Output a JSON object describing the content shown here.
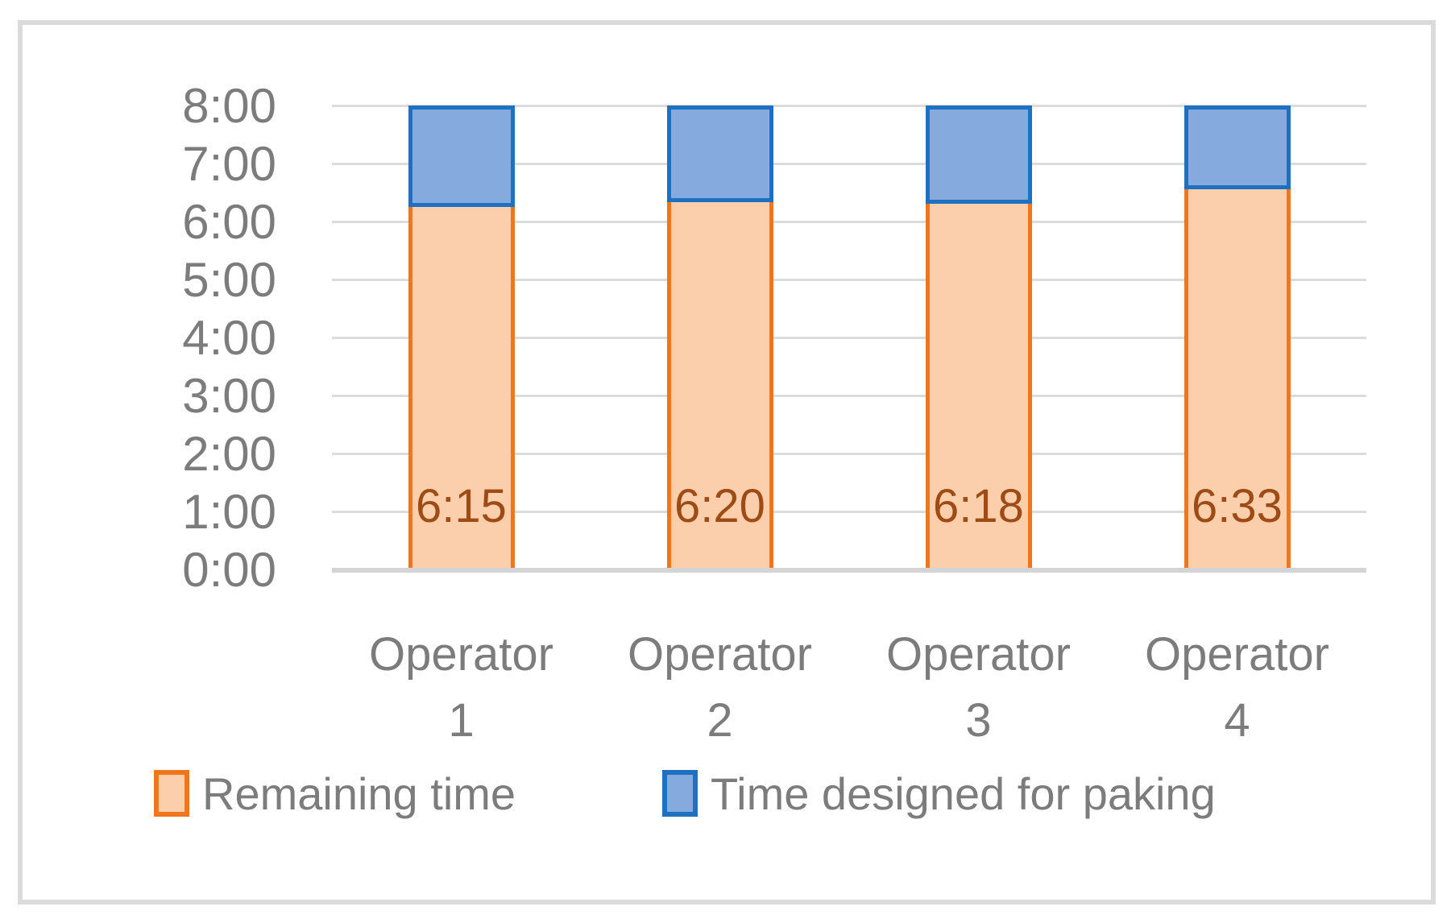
{
  "chart_data": {
    "type": "bar",
    "stacked": true,
    "orientation": "vertical",
    "title": "",
    "xlabel": "",
    "ylabel": "",
    "categories": [
      "Operator 1",
      "Operator 2",
      "Operator 3",
      "Operator 4"
    ],
    "series": [
      {
        "name": "Remaining time",
        "values_hours": [
          6.25,
          6.3333,
          6.3,
          6.55
        ],
        "value_labels": [
          "6:15",
          "6:20",
          "6:18",
          "6:33"
        ]
      },
      {
        "name": "Time designed for paking",
        "values_hours": [
          1.75,
          1.6667,
          1.7,
          1.45
        ]
      }
    ],
    "total_hours": 8,
    "ylim": [
      0,
      8
    ],
    "yticks": [
      "0:00",
      "1:00",
      "2:00",
      "3:00",
      "4:00",
      "5:00",
      "6:00",
      "7:00",
      "8:00"
    ],
    "grid": true,
    "legend_position": "bottom"
  },
  "colors": {
    "orange_border": "#f0761e",
    "orange_fill": "#fccfac",
    "blue_border": "#1e70c1",
    "blue_fill": "#84aade",
    "data_label": "#9e4b15",
    "text_gray": "#7c7c7c",
    "gridline": "#dcdcdc",
    "axis_line": "#d4d4d4",
    "frame_border": "#dbdbdb",
    "background": "#ffffff"
  }
}
